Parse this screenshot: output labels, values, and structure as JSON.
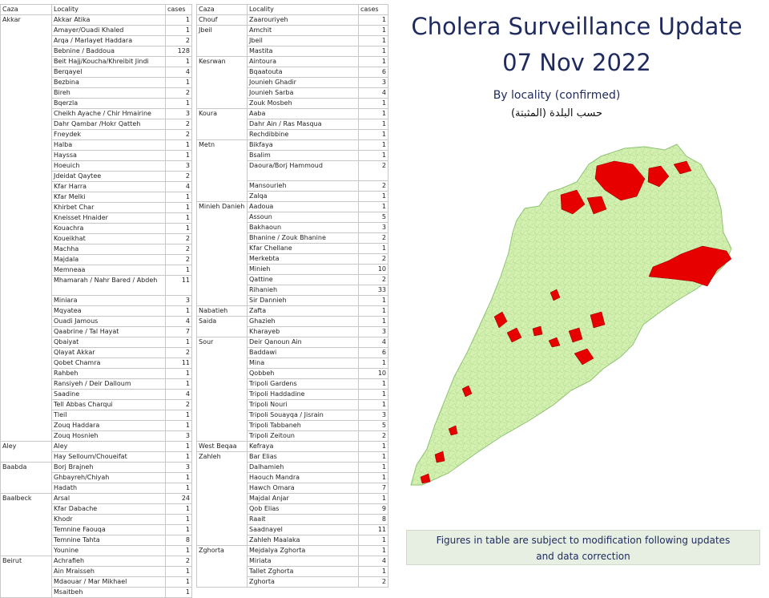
{
  "title": {
    "line1": "Cholera Surveillance Update",
    "line2": "07 Nov 2022"
  },
  "subtitle": "By locality (confirmed)",
  "subtitle_ar": "حسب البلدة (المثبتة)",
  "note": {
    "line1": "Figures in table are subject to modification following updates",
    "line2": "and data correction"
  },
  "colors": {
    "map_fill": "#d4f0b0",
    "map_border": "#9fd080",
    "cases_fill": "#e60000",
    "title": "#1f2a5e"
  },
  "table": {
    "headers": {
      "caza": "Caza",
      "locality": "Locality",
      "cases": "cases"
    },
    "left": [
      {
        "caza": "Akkar",
        "rows": [
          {
            "locality": "Akkar Atika",
            "cases": 1
          },
          {
            "locality": "Amayer/Ouadi Khaled",
            "cases": 1
          },
          {
            "locality": "Arqa / Marlayet Haddara",
            "cases": 2
          },
          {
            "locality": "Bebnine / Baddoua",
            "cases": 128
          },
          {
            "locality": "Beit Hajj/Koucha/Khreibit  Jindi",
            "cases": 1
          },
          {
            "locality": "Berqayel",
            "cases": 4
          },
          {
            "locality": "Bezbina",
            "cases": 1
          },
          {
            "locality": "Bireh",
            "cases": 2
          },
          {
            "locality": "Bqerzla",
            "cases": 1
          },
          {
            "locality": "Cheikh Ayache / Chir Hmairine",
            "cases": 3
          },
          {
            "locality": "Dahr Qambar /Hokr Qatteh",
            "cases": 2
          },
          {
            "locality": "Fneydek",
            "cases": 2
          },
          {
            "locality": "Halba",
            "cases": 1
          },
          {
            "locality": "Hayssa",
            "cases": 1
          },
          {
            "locality": "Hoeuich",
            "cases": 3
          },
          {
            "locality": "Jdeidat Qaytee",
            "cases": 2
          },
          {
            "locality": "Kfar Harra",
            "cases": 4
          },
          {
            "locality": "Kfar Melki",
            "cases": 1
          },
          {
            "locality": "Khirbet Char",
            "cases": 1
          },
          {
            "locality": "Kneisset Hnaider",
            "cases": 1
          },
          {
            "locality": "Kouachra",
            "cases": 1
          },
          {
            "locality": "Koueikhat",
            "cases": 2
          },
          {
            "locality": "Machha",
            "cases": 2
          },
          {
            "locality": "Majdala",
            "cases": 2
          },
          {
            "locality": "Memneaa",
            "cases": 1
          },
          {
            "locality": "Mhamarah / Nahr Bared  / Abdeh",
            "cases": 11,
            "tall": true
          },
          {
            "locality": "Miniara",
            "cases": 3
          },
          {
            "locality": "Mqyatea",
            "cases": 1
          },
          {
            "locality": "Ouadi Jamous",
            "cases": 4
          },
          {
            "locality": "Qaabrine / Tal Hayat",
            "cases": 7
          },
          {
            "locality": "Qbaiyat",
            "cases": 1
          },
          {
            "locality": "Qlayat Akkar",
            "cases": 2
          },
          {
            "locality": "Qobet Chamra",
            "cases": 11
          },
          {
            "locality": "Rahbeh",
            "cases": 1
          },
          {
            "locality": "Ransiyeh / Deir Dalloum",
            "cases": 1
          },
          {
            "locality": "Saadine",
            "cases": 4
          },
          {
            "locality": "Tell Abbas Charqui",
            "cases": 2
          },
          {
            "locality": "Tleil",
            "cases": 1
          },
          {
            "locality": "Zouq Haddara",
            "cases": 1
          },
          {
            "locality": "Zouq Hosnieh",
            "cases": 3
          }
        ]
      },
      {
        "caza": "Aley",
        "rows": [
          {
            "locality": "Aley",
            "cases": 1
          },
          {
            "locality": "Hay Selloum/Choueifat",
            "cases": 1
          }
        ]
      },
      {
        "caza": "Baabda",
        "rows": [
          {
            "locality": "Borj Brajneh",
            "cases": 3
          },
          {
            "locality": "Ghbayreh/Chiyah",
            "cases": 1
          },
          {
            "locality": "Hadath",
            "cases": 1
          }
        ]
      },
      {
        "caza": "Baalbeck",
        "rows": [
          {
            "locality": "Arsal",
            "cases": 24
          },
          {
            "locality": "Kfar Dabache",
            "cases": 1
          },
          {
            "locality": "Khodr",
            "cases": 1
          },
          {
            "locality": "Temnine Faouqa",
            "cases": 1
          },
          {
            "locality": "Temnine Tahta",
            "cases": 8
          },
          {
            "locality": "Younine",
            "cases": 1
          }
        ]
      },
      {
        "caza": "Beirut",
        "rows": [
          {
            "locality": "Achrafieh",
            "cases": 2
          },
          {
            "locality": "Ain Mraisseh",
            "cases": 1
          },
          {
            "locality": "Mdaouar / Mar Mikhael",
            "cases": 1
          },
          {
            "locality": "Msaitbeh",
            "cases": 1
          }
        ]
      }
    ],
    "right": [
      {
        "caza": "Chouf",
        "rows": [
          {
            "locality": "Zaarouriyeh",
            "cases": 1
          }
        ]
      },
      {
        "caza": "Jbeil",
        "rows": [
          {
            "locality": "Amchit",
            "cases": 1
          },
          {
            "locality": "Jbeil",
            "cases": 1
          },
          {
            "locality": "Mastita",
            "cases": 1
          }
        ]
      },
      {
        "caza": "Kesrwan",
        "rows": [
          {
            "locality": "Aintoura",
            "cases": 1
          },
          {
            "locality": "Bqaatouta",
            "cases": 6
          },
          {
            "locality": "Jounieh Ghadir",
            "cases": 3
          },
          {
            "locality": "Jounieh Sarba",
            "cases": 4
          },
          {
            "locality": "Zouk Mosbeh",
            "cases": 1
          }
        ]
      },
      {
        "caza": "Koura",
        "rows": [
          {
            "locality": "Aaba",
            "cases": 1
          },
          {
            "locality": "Dahr Ain / Ras Masqua",
            "cases": 1
          },
          {
            "locality": "Rechdibbine",
            "cases": 1
          }
        ]
      },
      {
        "caza": "Metn",
        "rows": [
          {
            "locality": "Bikfaya",
            "cases": 1
          },
          {
            "locality": "Bsalim",
            "cases": 1
          },
          {
            "locality": "Daoura/Borj  Hammoud",
            "cases": 2,
            "tall": true
          },
          {
            "locality": "Mansourieh",
            "cases": 2
          },
          {
            "locality": "Zalqa",
            "cases": 1
          }
        ]
      },
      {
        "caza": "Minieh Danieh",
        "rows": [
          {
            "locality": "Aadoua",
            "cases": 1
          },
          {
            "locality": "Assoun",
            "cases": 5
          },
          {
            "locality": "Bakhaoun",
            "cases": 3
          },
          {
            "locality": "Bhanine  / Zouk Bhanine",
            "cases": 2
          },
          {
            "locality": "Kfar Chellane",
            "cases": 1
          },
          {
            "locality": "Merkebta",
            "cases": 2
          },
          {
            "locality": "Minieh",
            "cases": 10
          },
          {
            "locality": "Qattine",
            "cases": 2
          },
          {
            "locality": "Rihanieh",
            "cases": 33
          },
          {
            "locality": "Sir Dannieh",
            "cases": 1
          }
        ]
      },
      {
        "caza": "Nabatieh",
        "rows": [
          {
            "locality": "Zafta",
            "cases": 1
          }
        ]
      },
      {
        "caza": "Saida",
        "rows": [
          {
            "locality": "Ghazieh",
            "cases": 1
          },
          {
            "locality": "Kharayeb",
            "cases": 3
          }
        ]
      },
      {
        "caza": "Sour",
        "rows": [
          {
            "locality": "Deir Qanoun Ain",
            "cases": 4
          },
          {
            "locality": "Baddawi",
            "cases": 6
          },
          {
            "locality": "Mina",
            "cases": 1
          },
          {
            "locality": "Qobbeh",
            "cases": 10
          },
          {
            "locality": "Tripoli Gardens",
            "cases": 1
          },
          {
            "locality": "Tripoli Haddadine",
            "cases": 1
          },
          {
            "locality": "Tripoli Nouri",
            "cases": 1
          },
          {
            "locality": "Tripoli Souayqa / Jisrain",
            "cases": 3
          },
          {
            "locality": "Tripoli Tabbaneh",
            "cases": 5
          },
          {
            "locality": "Tripoli Zeitoun",
            "cases": 2
          }
        ]
      },
      {
        "caza": "West Beqaa",
        "rows": [
          {
            "locality": "Kefraya",
            "cases": 1
          }
        ]
      },
      {
        "caza": "Zahleh",
        "rows": [
          {
            "locality": "Bar Elias",
            "cases": 1
          },
          {
            "locality": "Dalhamieh",
            "cases": 1
          },
          {
            "locality": "Haouch Mandra",
            "cases": 1
          },
          {
            "locality": "Hawch Omara",
            "cases": 7
          },
          {
            "locality": "Majdal Anjar",
            "cases": 1
          },
          {
            "locality": "Qob Elias",
            "cases": 9
          },
          {
            "locality": "Raait",
            "cases": 8
          },
          {
            "locality": "Saadnayel",
            "cases": 11
          },
          {
            "locality": "Zahleh Maalaka",
            "cases": 1
          }
        ]
      },
      {
        "caza": "Zghorta",
        "rows": [
          {
            "locality": "Mejdalya Zghorta",
            "cases": 1
          },
          {
            "locality": "Miriata",
            "cases": 4
          },
          {
            "locality": "Tallet Zghorta",
            "cases": 1
          },
          {
            "locality": "Zghorta",
            "cases": 2
          }
        ]
      }
    ]
  }
}
